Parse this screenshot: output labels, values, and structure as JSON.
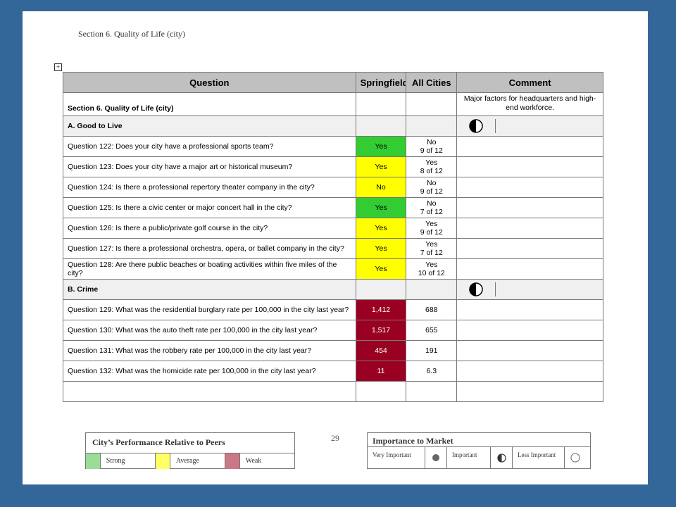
{
  "page_header": "Section 6. Quality of Life (city)",
  "table": {
    "headers": [
      "Question",
      "Springfield",
      "All Cities",
      "Comment"
    ],
    "section_title": "Section 6. Quality of Life (city)",
    "section_comment": "Major factors for headquarters and high-end workforce.",
    "groups": [
      {
        "label": "A. Good to Live",
        "importance_icon": "half-circle-icon",
        "rows": [
          {
            "question": "Question 122: Does your city have a professional sports team?",
            "springfield": "Yes",
            "performance": "strong",
            "all_cities_1": "No",
            "all_cities_2": "9 of 12"
          },
          {
            "question": "Question 123: Does your city have a major art or historical museum?",
            "springfield": "Yes",
            "performance": "average",
            "all_cities_1": "Yes",
            "all_cities_2": "8 of 12"
          },
          {
            "question": "Question 124: Is there a professional repertory theater company in the city?",
            "springfield": "No",
            "performance": "average",
            "all_cities_1": "No",
            "all_cities_2": "9 of 12"
          },
          {
            "question": "Question 125: Is there a civic center or major concert hall in the city?",
            "springfield": "Yes",
            "performance": "strong",
            "all_cities_1": "No",
            "all_cities_2": "7 of 12"
          },
          {
            "question": "Question 126: Is there a public/private golf course in the city?",
            "springfield": "Yes",
            "performance": "average",
            "all_cities_1": "Yes",
            "all_cities_2": "9 of 12"
          },
          {
            "question": "Question 127: Is there a professional orchestra, opera, or ballet company in the city?",
            "springfield": "Yes",
            "performance": "average",
            "all_cities_1": "Yes",
            "all_cities_2": "7 of 12"
          },
          {
            "question": "Question 128: Are there public beaches or boating activities within five miles of the city?",
            "springfield": "Yes",
            "performance": "average",
            "all_cities_1": "Yes",
            "all_cities_2": "10 of 12"
          }
        ]
      },
      {
        "label": "B. Crime",
        "importance_icon": "half-circle-icon",
        "rows": [
          {
            "question": "Question 129: What was the residential burglary rate per 100,000 in the city last year?",
            "springfield": "1,412",
            "performance": "weak",
            "all_cities_1": "688",
            "all_cities_2": ""
          },
          {
            "question": "Question 130: What was the auto theft rate per 100,000 in the city last year?",
            "springfield": "1,517",
            "performance": "weak",
            "all_cities_1": "655",
            "all_cities_2": ""
          },
          {
            "question": "Question 131: What was the robbery rate per 100,000 in the city last year?",
            "springfield": "454",
            "performance": "weak",
            "all_cities_1": "191",
            "all_cities_2": ""
          },
          {
            "question": "Question 132: What was the homicide rate per 100,000 in the city last year?",
            "springfield": "11",
            "performance": "weak",
            "all_cities_1": "6.3",
            "all_cities_2": ""
          }
        ]
      }
    ]
  },
  "legend_performance": {
    "title": "City’s Performance Relative to Peers",
    "items": [
      {
        "label": "Strong",
        "color": "#99dd99"
      },
      {
        "label": "Average",
        "color": "#ffff66"
      },
      {
        "label": "Weak",
        "color": "#cc7788"
      }
    ]
  },
  "page_number": "29",
  "legend_importance": {
    "title": "Importance to Market",
    "items": [
      {
        "label": "Very Important",
        "icon": "filled-circle-icon"
      },
      {
        "label": "Important",
        "icon": "half-circle-icon"
      },
      {
        "label": "Less Important",
        "icon": "empty-circle-icon"
      }
    ]
  },
  "colors": {
    "strong": "#33cc33",
    "average": "#ffff00",
    "weak": "#990022",
    "header_bg": "#c0c0c0",
    "frame": "#336699"
  }
}
